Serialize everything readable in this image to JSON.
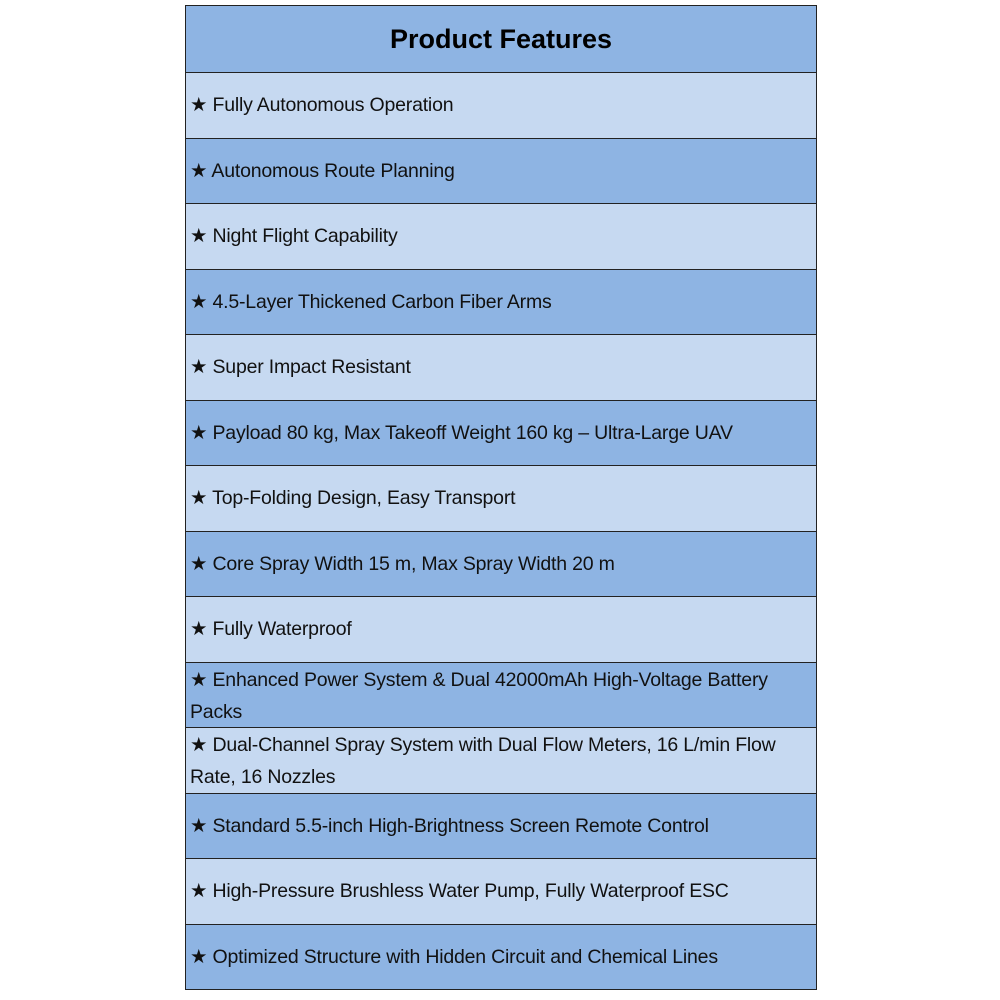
{
  "title": "Product Features",
  "bullet": "★",
  "colors": {
    "header": "#8EB4E3",
    "row_light": "#C6D9F1",
    "row_dark": "#8EB4E3",
    "border": "#222222"
  },
  "features": [
    "★ Fully Autonomous Operation",
    "★ Autonomous Route Planning",
    "★ Night Flight Capability",
    "★ 4.5-Layer Thickened Carbon Fiber Arms",
    "★ Super Impact Resistant",
    "★ Payload 80 kg, Max Takeoff Weight 160 kg – Ultra-Large UAV",
    "★ Top-Folding Design, Easy Transport",
    "★ Core Spray Width 15 m, Max Spray Width 20 m",
    "★ Fully Waterproof",
    "★ Enhanced Power System & Dual 42000mAh High-Voltage Battery Packs",
    "★ Dual-Channel Spray System with Dual Flow Meters, 16 L/min Flow Rate, 16 Nozzles",
    "★ Standard 5.5-inch High-Brightness Screen Remote Control",
    "★ High-Pressure Brushless Water Pump, Fully Waterproof ESC",
    "★ Optimized Structure with Hidden Circuit and Chemical Lines"
  ]
}
